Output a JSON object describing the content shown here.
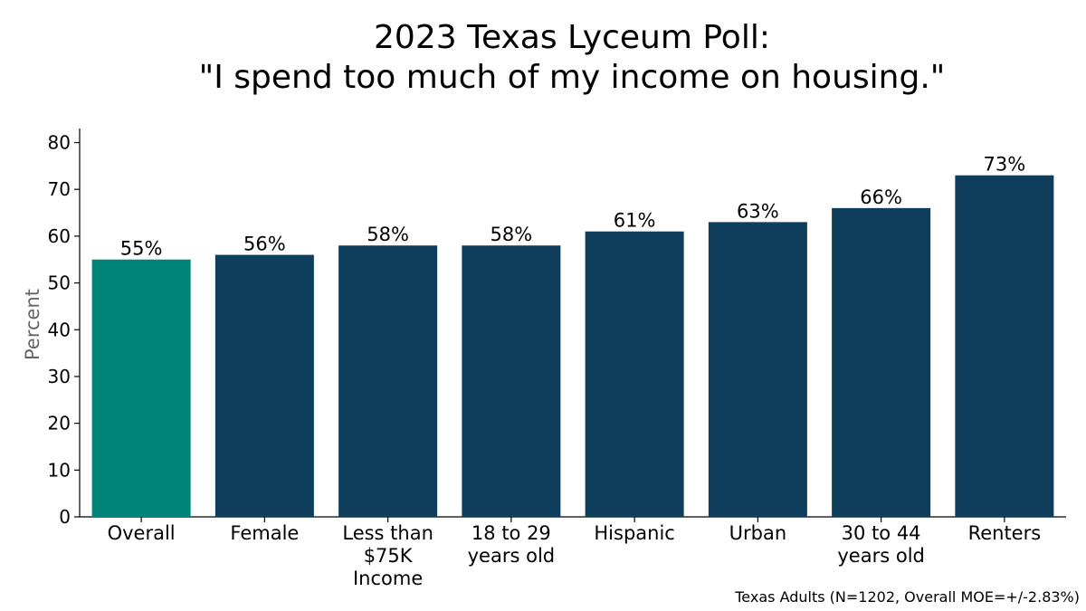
{
  "chart_data": {
    "type": "bar",
    "title": [
      "2023 Texas Lyceum Poll:",
      "\"I spend too much of my income on housing.\""
    ],
    "ylabel": "Percent",
    "xlabel": "",
    "ylim": [
      0,
      83
    ],
    "yticks": [
      0,
      10,
      20,
      30,
      40,
      50,
      60,
      70,
      80
    ],
    "categories": [
      [
        "Overall"
      ],
      [
        "Female"
      ],
      [
        "Less than",
        "$75K",
        "Income"
      ],
      [
        "18 to 29",
        "years old"
      ],
      [
        "Hispanic"
      ],
      [
        "Urban"
      ],
      [
        "30 to 44",
        "years old"
      ],
      [
        "Renters"
      ]
    ],
    "values": [
      55,
      56,
      58,
      58,
      61,
      63,
      66,
      73
    ],
    "data_labels": [
      "55%",
      "56%",
      "58%",
      "58%",
      "61%",
      "63%",
      "66%",
      "73%"
    ],
    "colors": [
      "#00847a",
      "#0f3d5c",
      "#0f3d5c",
      "#0f3d5c",
      "#0f3d5c",
      "#0f3d5c",
      "#0f3d5c",
      "#0f3d5c"
    ],
    "grid": false,
    "footnote": "Texas Adults (N=1202, Overall MOE=+/-2.83%)"
  }
}
